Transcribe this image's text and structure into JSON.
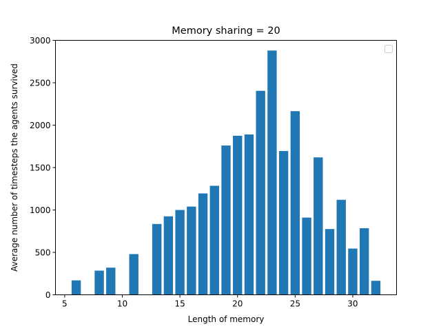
{
  "chart_data": {
    "type": "bar",
    "title": "Memory sharing = 20",
    "xlabel": "Length of memory",
    "ylabel": "Average number of timesteps the agents survived",
    "xlim": [
      4.2,
      33.8
    ],
    "ylim": [
      0,
      3000
    ],
    "xticks": [
      5,
      10,
      15,
      20,
      25,
      30
    ],
    "yticks": [
      0,
      500,
      1000,
      1500,
      2000,
      2500,
      3000
    ],
    "bar_color": "#1f77b4",
    "bar_width": 0.8,
    "legend": "top-right",
    "grid": false,
    "x": [
      6,
      8,
      9,
      11,
      13,
      14,
      15,
      16,
      17,
      18,
      19,
      20,
      21,
      22,
      23,
      24,
      25,
      26,
      27,
      28,
      29,
      30,
      31,
      32
    ],
    "values": [
      170,
      285,
      320,
      480,
      835,
      925,
      1000,
      1040,
      1195,
      1285,
      1760,
      1875,
      1890,
      2405,
      2880,
      1695,
      2165,
      910,
      1620,
      775,
      1120,
      545,
      785,
      165
    ]
  }
}
